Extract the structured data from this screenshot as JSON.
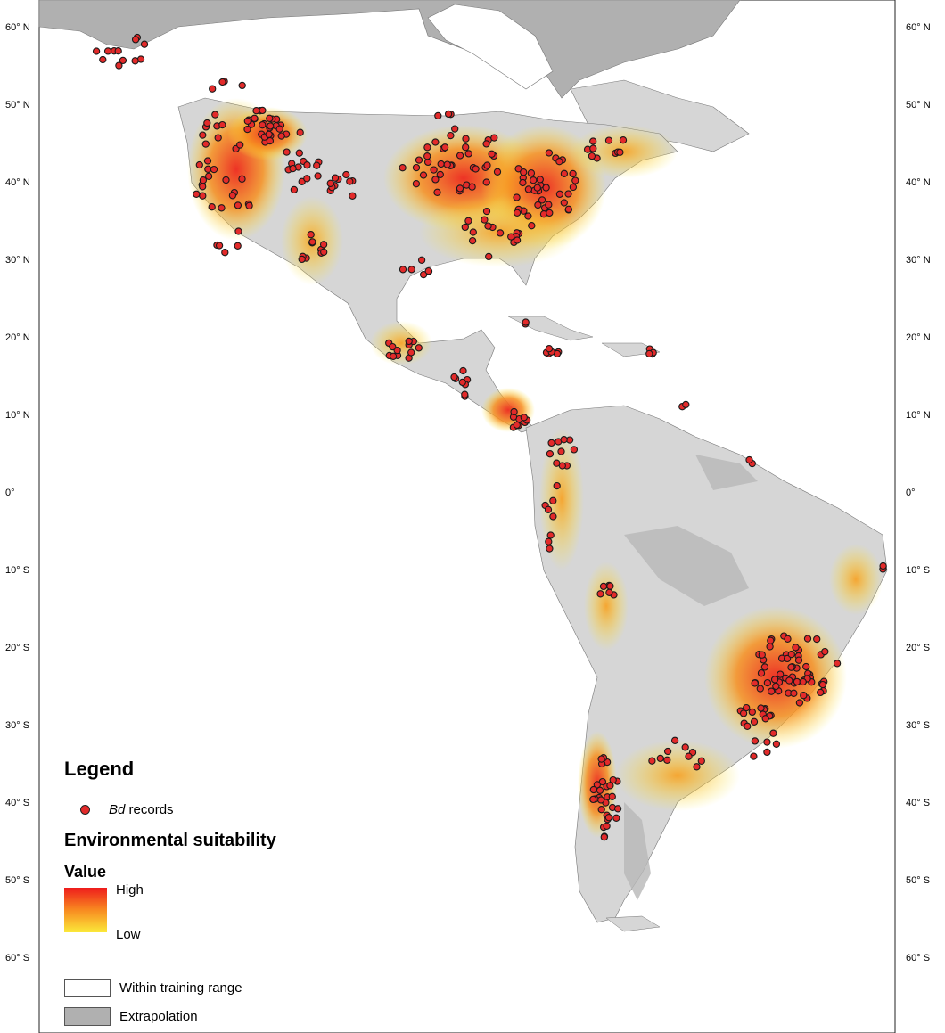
{
  "map": {
    "lat_labels_left": [
      "60° N",
      "50° N",
      "40° N",
      "30° N",
      "20° N",
      "10° N",
      "0°",
      "10° S",
      "20° S",
      "30° S",
      "40° S",
      "50° S",
      "60° S"
    ],
    "lat_labels_right": [
      "60° N",
      "50° N",
      "40° N",
      "30° N",
      "20° N",
      "10° N",
      "0°",
      "10° S",
      "20° S",
      "30° S",
      "40° S",
      "50° S",
      "60° S"
    ]
  },
  "legend": {
    "title": "Legend",
    "bd_records_italic": "Bd",
    "bd_records_suffix": " records",
    "env_title": "Environmental suitability",
    "value_title": "Value",
    "high_label": "High",
    "low_label": "Low",
    "within_training_label": "Within training range",
    "extrapolation_label": "Extrapolation"
  },
  "colors": {
    "high": "#ee1c1c",
    "low": "#fbe93a",
    "record_dot": "#e32a2a",
    "extrapolation": "#b0b0b0",
    "land": "#d6d6d6"
  }
}
